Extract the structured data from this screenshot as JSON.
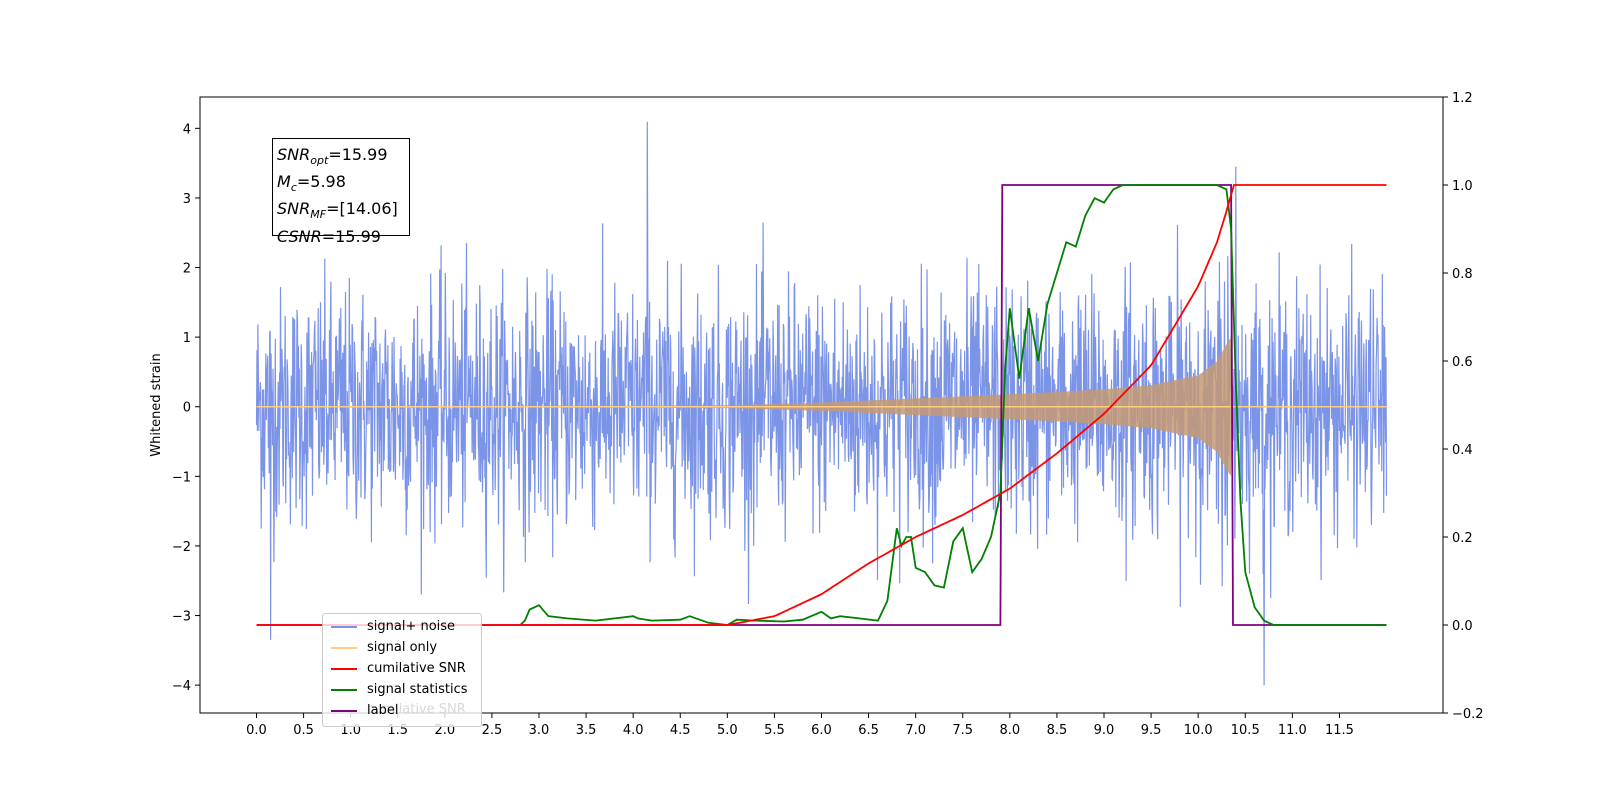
{
  "annotation": {
    "snr_opt_value": "15.99",
    "mc_value": "5.98",
    "snr_mf_value": "[14.06]",
    "csnr_value": "15.99"
  },
  "legend": [
    {
      "label": "signal+ noise",
      "color": "#7b94e8"
    },
    {
      "label": "signal only",
      "color": "#ffcc80"
    },
    {
      "label": "cumilative SNR",
      "color": "#ff0000"
    },
    {
      "label": "signal statistics",
      "color": "#008000"
    },
    {
      "label": "label",
      "color": "#800080"
    }
  ],
  "legend_overlap_text": "cumilative SNR",
  "chart_data": {
    "type": "line",
    "xlabel": "",
    "ylabel": "Whitened strain",
    "x_ticks": [
      0.0,
      0.5,
      1.0,
      1.5,
      2.0,
      2.5,
      3.0,
      3.5,
      4.0,
      4.5,
      5.0,
      5.5,
      6.0,
      6.5,
      7.0,
      7.5,
      8.0,
      8.5,
      9.0,
      9.5,
      10.0,
      10.5,
      11.0,
      11.5
    ],
    "x_tick_labels": [
      "0.0",
      "0.5",
      "1.0",
      "1.5",
      "2.0",
      "2.5",
      "3.0",
      "3.5",
      "4.0",
      "4.5",
      "5.0",
      "5.5",
      "6.0",
      "6.5",
      "7.0",
      "7.5",
      "8.0",
      "8.5",
      "9.0",
      "9.5",
      "10.0",
      "10.5",
      "11.0",
      "11.5"
    ],
    "xlim": [
      -0.6,
      12.6
    ],
    "ylim_left": [
      -4.4,
      4.45
    ],
    "y_left_ticks": [
      -4,
      -3,
      -2,
      -1,
      0,
      1,
      2,
      3,
      4
    ],
    "y_left_tick_labels": [
      "−4",
      "−3",
      "−2",
      "−1",
      "0",
      "1",
      "2",
      "3",
      "4"
    ],
    "ylim_right": [
      -0.2,
      1.2
    ],
    "y_right_ticks": [
      -0.2,
      0.0,
      0.2,
      0.4,
      0.6,
      0.8,
      1.0,
      1.2
    ],
    "y_right_tick_labels": [
      "−0.2",
      "0.0",
      "0.2",
      "0.4",
      "0.6",
      "0.8",
      "1.0",
      "1.2"
    ],
    "legend_position": "lower-left",
    "series": [
      {
        "name": "signal+ noise",
        "axis": "left",
        "x_range": [
          0.0,
          12.0
        ],
        "noise_amplitude_approx": [
          -2.9,
          3.3
        ],
        "peak_values": [
          [
            0.15,
            -3.35
          ],
          [
            4.15,
            4.1
          ],
          [
            10.7,
            -4.0
          ],
          [
            10.4,
            3.45
          ]
        ]
      },
      {
        "name": "signal only",
        "axis": "left",
        "envelope_x": [
          0.0,
          5.0,
          6.0,
          7.0,
          7.5,
          8.0,
          8.5,
          9.0,
          9.5,
          10.0,
          10.2,
          10.3,
          10.35,
          10.36,
          12.0
        ],
        "envelope_amp": [
          0.0,
          0.02,
          0.06,
          0.12,
          0.15,
          0.18,
          0.21,
          0.25,
          0.31,
          0.45,
          0.65,
          0.9,
          1.0,
          0.0,
          0.0
        ]
      },
      {
        "name": "cumilative SNR",
        "axis": "right",
        "x": [
          0.0,
          5.0,
          5.5,
          6.0,
          6.5,
          7.0,
          7.5,
          8.0,
          8.5,
          9.0,
          9.5,
          10.0,
          10.2,
          10.3,
          10.38,
          12.0
        ],
        "y": [
          0.0,
          0.0,
          0.02,
          0.07,
          0.14,
          0.2,
          0.25,
          0.31,
          0.39,
          0.48,
          0.59,
          0.77,
          0.87,
          0.94,
          1.0,
          1.0
        ]
      },
      {
        "name": "signal statistics",
        "axis": "right",
        "x": [
          2.8,
          2.85,
          2.9,
          3.0,
          3.1,
          3.3,
          3.6,
          4.0,
          4.05,
          4.2,
          4.5,
          4.6,
          4.8,
          5.0,
          5.1,
          5.3,
          5.6,
          5.8,
          6.0,
          6.1,
          6.2,
          6.4,
          6.6,
          6.7,
          6.8,
          6.85,
          6.9,
          6.95,
          7.0,
          7.1,
          7.2,
          7.3,
          7.4,
          7.5,
          7.6,
          7.7,
          7.8,
          7.9,
          7.95,
          8.0,
          8.1,
          8.2,
          8.3,
          8.4,
          8.5,
          8.6,
          8.7,
          8.8,
          8.9,
          9.0,
          9.1,
          9.2,
          9.4,
          9.6,
          9.8,
          10.0,
          10.2,
          10.3,
          10.35,
          10.4,
          10.45,
          10.5,
          10.6,
          10.7,
          10.8,
          12.0
        ],
        "y": [
          0.0,
          0.01,
          0.035,
          0.045,
          0.02,
          0.015,
          0.01,
          0.02,
          0.015,
          0.01,
          0.012,
          0.02,
          0.005,
          0.0,
          0.012,
          0.01,
          0.008,
          0.012,
          0.03,
          0.015,
          0.02,
          0.015,
          0.01,
          0.055,
          0.22,
          0.18,
          0.2,
          0.2,
          0.13,
          0.12,
          0.09,
          0.085,
          0.19,
          0.22,
          0.12,
          0.15,
          0.2,
          0.3,
          0.58,
          0.72,
          0.56,
          0.72,
          0.6,
          0.73,
          0.8,
          0.87,
          0.86,
          0.93,
          0.97,
          0.96,
          0.99,
          1.0,
          1.0,
          1.0,
          1.0,
          1.0,
          1.0,
          0.99,
          0.9,
          0.55,
          0.28,
          0.12,
          0.04,
          0.01,
          0.0,
          0.0
        ]
      },
      {
        "name": "label",
        "axis": "right",
        "x": [
          0.0,
          7.9,
          7.92,
          10.35,
          10.37,
          12.0
        ],
        "y": [
          0.0,
          0.0,
          1.0,
          1.0,
          0.0,
          0.0
        ]
      }
    ]
  }
}
